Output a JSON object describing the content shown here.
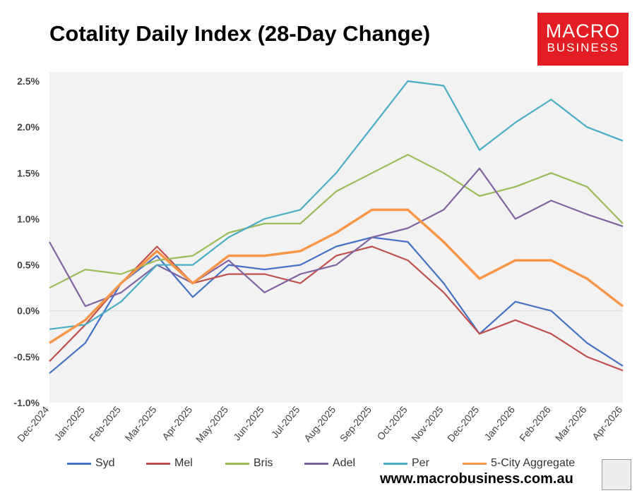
{
  "title": "Cotality Daily Index (28-Day Change)",
  "logo": {
    "line1": "MACRO",
    "line2": "BUSINESS"
  },
  "footer": "www.macrobusiness.com.au",
  "colors": {
    "plot_bg": "#f2f2f2",
    "zero_line": "#d9d9d9",
    "logo_bg": "#e31d24"
  },
  "chart_data": {
    "type": "line",
    "title": "Cotality Daily Index (28-Day Change)",
    "xlabel": "",
    "ylabel": "",
    "x_ticks": [
      "Dec-2024",
      "Jan-2025",
      "Feb-2025",
      "Mar-2025",
      "Apr-2025",
      "May-2025",
      "Jun-2025",
      "Jul-2025",
      "Aug-2025",
      "Sep-2025",
      "Oct-2025",
      "Nov-2025",
      "Dec-2025",
      "Jan-2026",
      "Feb-2026",
      "Mar-2026",
      "Apr-2026"
    ],
    "y_ticks": [
      "-1.0%",
      "-0.5%",
      "0.0%",
      "0.5%",
      "1.0%",
      "1.5%",
      "2.0%",
      "2.5%"
    ],
    "ylim": [
      -1.0,
      2.6
    ],
    "grid": false,
    "legend": "bottom",
    "x": [
      "Dec-2024",
      "Jan-2025",
      "Feb-2025",
      "Mar-2025",
      "Apr-2025",
      "May-2025",
      "Jun-2025",
      "Jul-2025",
      "Aug-2025",
      "Sep-2025",
      "Oct-2025",
      "Nov-2025",
      "Dec-2025",
      "Jan-2026",
      "Feb-2026",
      "Mar-2026",
      "Apr-2026"
    ],
    "series": [
      {
        "name": "Syd",
        "color": "#4472c4",
        "values": [
          -0.68,
          -0.35,
          0.3,
          0.6,
          0.15,
          0.5,
          0.45,
          0.5,
          0.7,
          0.8,
          0.75,
          0.3,
          -0.25,
          0.1,
          0.0,
          -0.35,
          -0.6
        ]
      },
      {
        "name": "Mel",
        "color": "#c0504d",
        "values": [
          -0.55,
          -0.15,
          0.3,
          0.7,
          0.3,
          0.4,
          0.4,
          0.3,
          0.6,
          0.7,
          0.55,
          0.2,
          -0.25,
          -0.1,
          -0.25,
          -0.5,
          -0.65
        ]
      },
      {
        "name": "Bris",
        "color": "#9bbb59",
        "values": [
          0.25,
          0.45,
          0.4,
          0.55,
          0.6,
          0.85,
          0.95,
          0.95,
          1.3,
          1.5,
          1.7,
          1.5,
          1.25,
          1.35,
          1.5,
          1.35,
          0.95
        ]
      },
      {
        "name": "Adel",
        "color": "#8064a2",
        "values": [
          0.75,
          0.05,
          0.2,
          0.5,
          0.3,
          0.55,
          0.2,
          0.4,
          0.5,
          0.8,
          0.9,
          1.1,
          1.55,
          1.0,
          1.2,
          1.05,
          0.92
        ]
      },
      {
        "name": "Per",
        "color": "#4bacc6",
        "values": [
          -0.2,
          -0.15,
          0.1,
          0.5,
          0.5,
          0.8,
          1.0,
          1.1,
          1.5,
          2.0,
          2.5,
          2.45,
          1.75,
          2.05,
          2.3,
          2.0,
          1.85
        ]
      },
      {
        "name": "5-City Aggregate",
        "color": "#f79646",
        "values": [
          -0.35,
          -0.1,
          0.3,
          0.65,
          0.3,
          0.6,
          0.6,
          0.65,
          0.85,
          1.1,
          1.1,
          0.75,
          0.35,
          0.55,
          0.55,
          0.35,
          0.05
        ]
      }
    ]
  }
}
